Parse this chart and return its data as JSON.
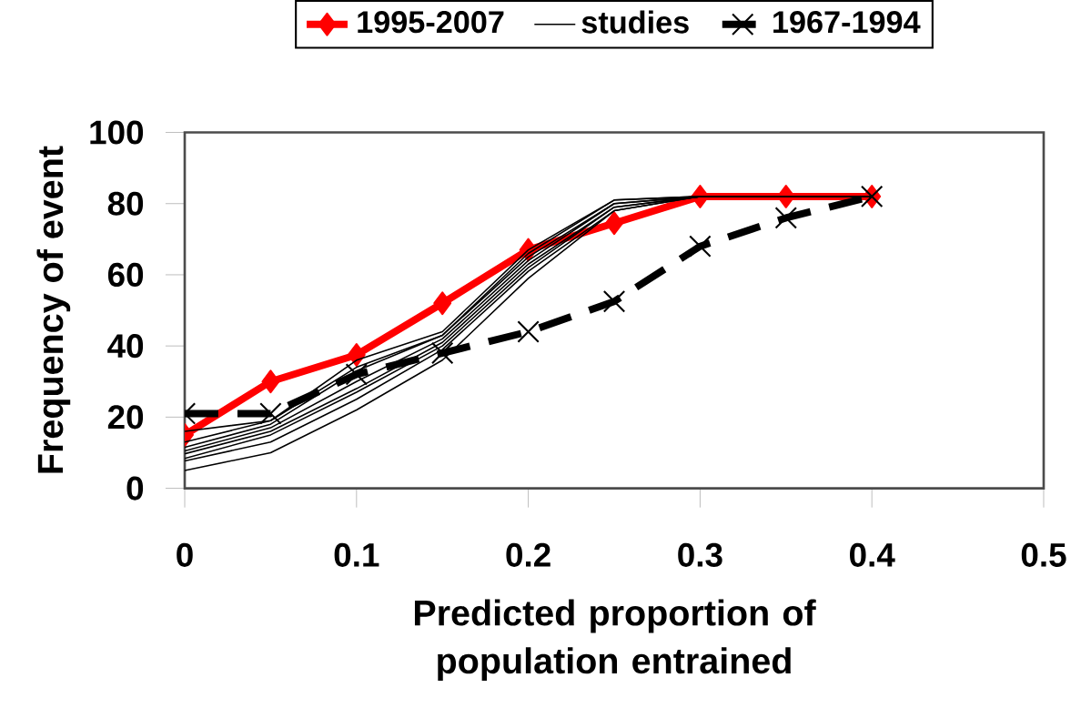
{
  "chart_data": {
    "type": "line",
    "xlabel": "Predicted proportion of population entrained",
    "ylabel": "Frequency of event",
    "x": [
      0,
      0.05,
      0.1,
      0.15,
      0.2,
      0.25,
      0.3,
      0.35,
      0.4
    ],
    "xlim": [
      0,
      0.5
    ],
    "xticks": [
      0,
      0.1,
      0.2,
      0.3,
      0.4,
      0.5
    ],
    "ylim": [
      0,
      100
    ],
    "yticks": [
      0,
      20,
      40,
      60,
      80,
      100
    ],
    "legend": "top",
    "series": [
      {
        "name": "1995-2007",
        "color": "#ff0000",
        "marker": "diamond",
        "line_style": "solid",
        "values": [
          15,
          30,
          37.5,
          52,
          67,
          74.5,
          82,
          82,
          82
        ]
      },
      {
        "name": "studies",
        "color": "#000000",
        "marker": "none",
        "line_style": "solid",
        "values": [
          5,
          10,
          22,
          36,
          59,
          78,
          82,
          82,
          82
        ]
      },
      {
        "name": "1967-1994",
        "color": "#000000",
        "marker": "cross",
        "line_style": "dashed",
        "values": [
          21,
          21,
          32,
          38,
          44,
          52.5,
          68,
          76,
          82
        ]
      },
      {
        "color": "#000000",
        "marker": "none",
        "line_style": "solid",
        "values": [
          16,
          19,
          34,
          43,
          66,
          81,
          82,
          82,
          82
        ]
      },
      {
        "color": "#000000",
        "marker": "none",
        "line_style": "solid",
        "values": [
          13,
          19,
          36,
          44,
          67,
          81,
          82,
          82,
          82
        ]
      },
      {
        "color": "#000000",
        "marker": "none",
        "line_style": "solid",
        "values": [
          11.5,
          18,
          33,
          43,
          65,
          80,
          82,
          82,
          82
        ]
      },
      {
        "color": "#000000",
        "marker": "none",
        "line_style": "solid",
        "values": [
          10.5,
          17,
          30,
          42,
          64,
          80,
          82,
          82,
          82
        ]
      },
      {
        "color": "#000000",
        "marker": "none",
        "line_style": "solid",
        "values": [
          9.7,
          16,
          28,
          41,
          63,
          79,
          82,
          82,
          82
        ]
      },
      {
        "color": "#000000",
        "marker": "none",
        "line_style": "solid",
        "values": [
          8.4,
          15,
          27,
          40,
          62,
          79,
          82,
          82,
          82
        ]
      },
      {
        "color": "#000000",
        "marker": "none",
        "line_style": "solid",
        "values": [
          7.7,
          13,
          25,
          39,
          61,
          78,
          82,
          82,
          82
        ]
      }
    ]
  }
}
